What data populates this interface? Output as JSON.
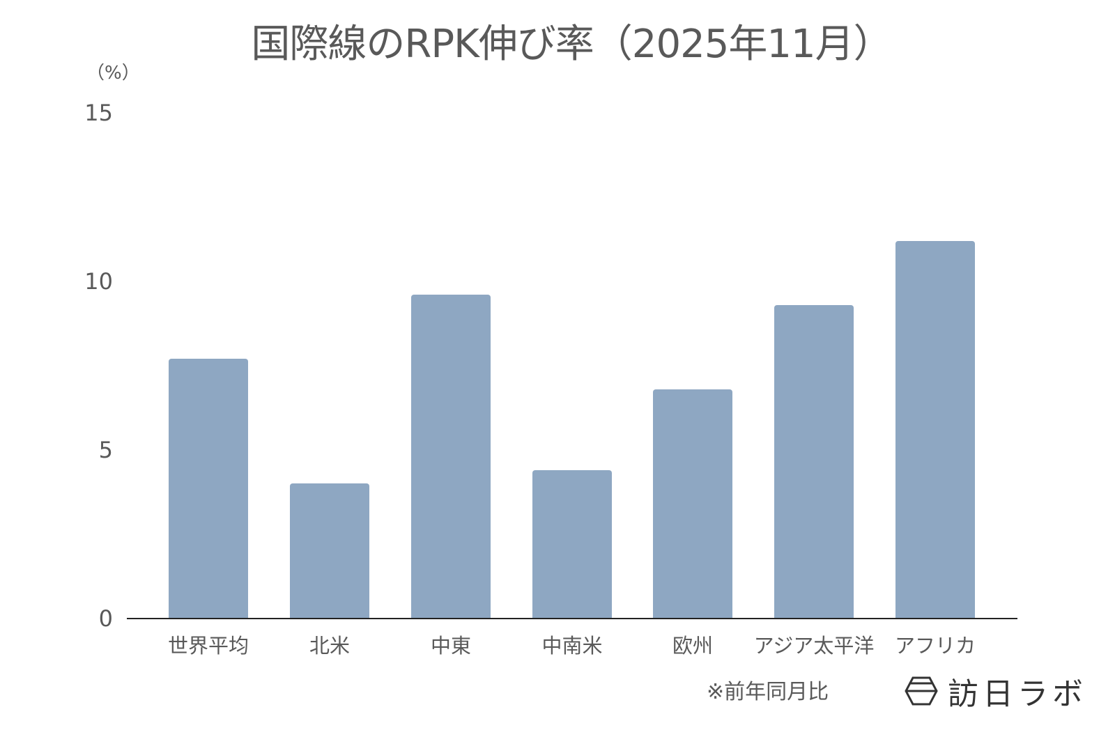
{
  "header": {
    "title": "国際線のRPK伸び率（2025年11月）"
  },
  "axis": {
    "unit_label": "（%）",
    "y_ticks": [
      "15",
      "10",
      "5",
      "0"
    ]
  },
  "footer": {
    "note": "※前年同月比",
    "brand": "訪日ラボ",
    "brand_icon": "hexagon-logo-icon"
  },
  "colors": {
    "bar": "#8EA7C2",
    "text": "#595959",
    "axis": "#222222"
  },
  "chart_data": {
    "type": "bar",
    "title": "国際線のRPK伸び率（2025年11月）",
    "xlabel": "",
    "ylabel": "（%）",
    "ylim": [
      0,
      15
    ],
    "yticks": [
      0,
      5,
      10,
      15
    ],
    "grid": false,
    "legend": null,
    "categories": [
      "世界平均",
      "北米",
      "中東",
      "中南米",
      "欧州",
      "アジア太平洋",
      "アフリカ"
    ],
    "values": [
      7.7,
      4.0,
      9.6,
      4.4,
      6.8,
      9.3,
      11.2
    ],
    "annotations": [
      "※前年同月比"
    ]
  }
}
